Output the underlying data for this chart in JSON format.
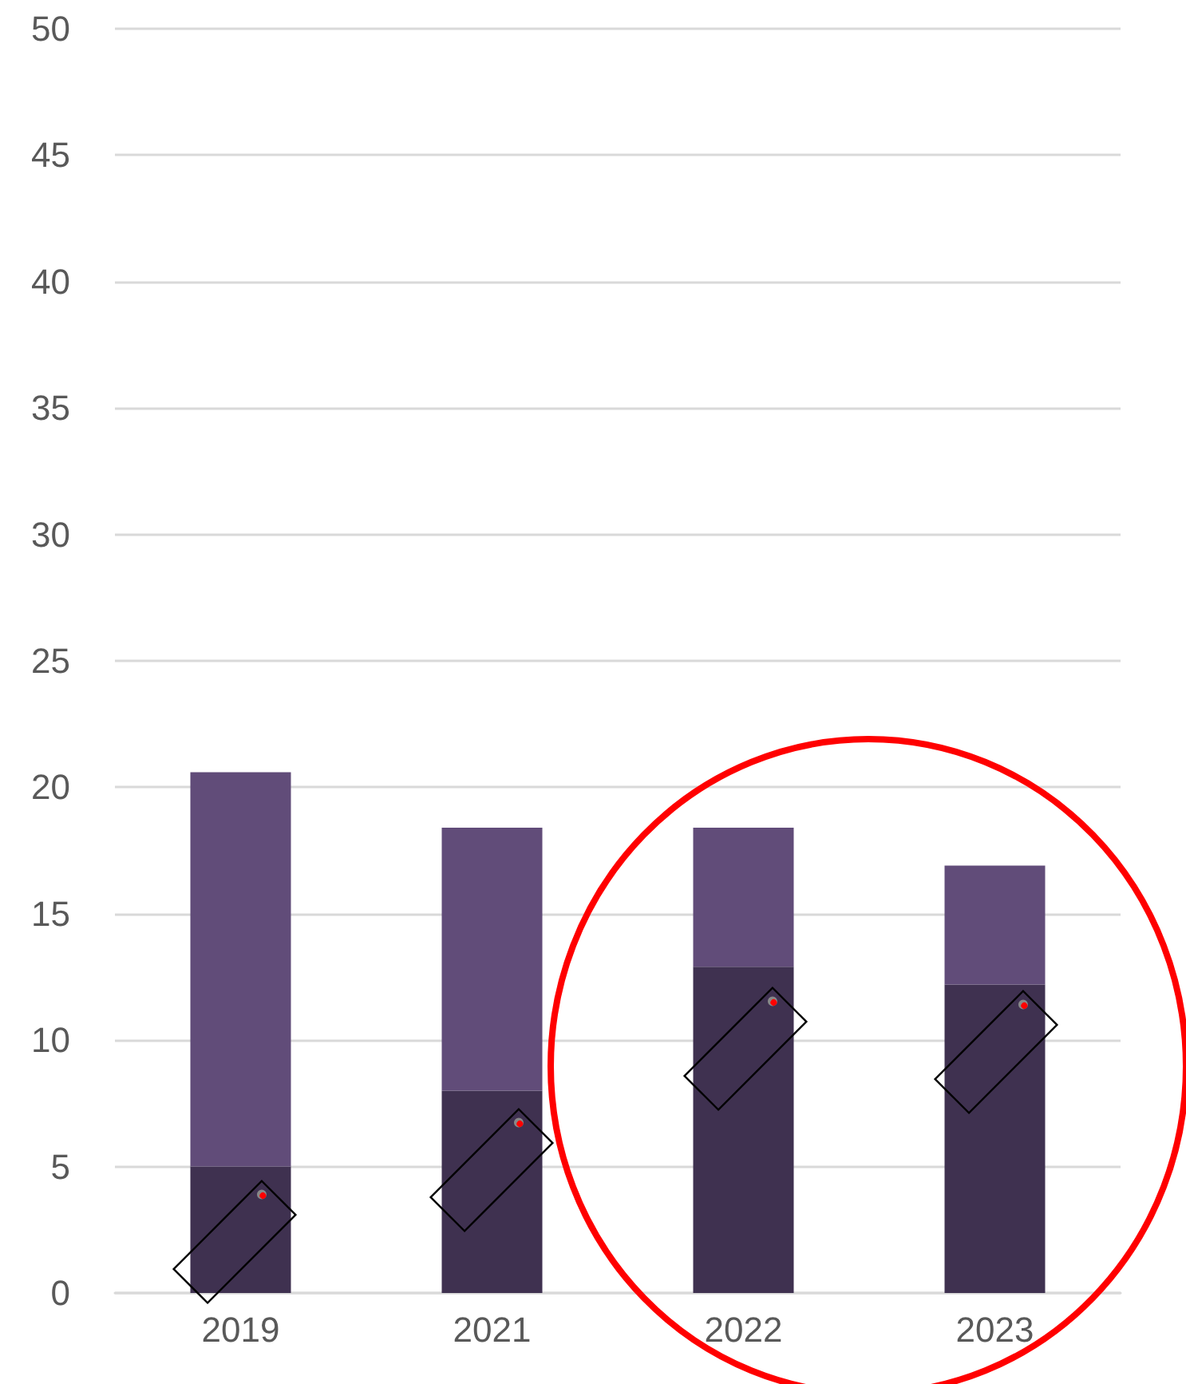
{
  "chart_data": {
    "type": "bar",
    "stacked": true,
    "categories": [
      "2019",
      "2021",
      "2022",
      "2023"
    ],
    "series": [
      {
        "color": "#3f3150",
        "values": [
          5,
          8,
          12.9,
          12.2
        ]
      },
      {
        "color": "#614c79",
        "values": [
          15.6,
          10.4,
          5.5,
          4.7
        ]
      }
    ],
    "ylim": [
      0,
      50
    ],
    "yticks": [
      0,
      5,
      10,
      15,
      20,
      25,
      30,
      35,
      40,
      45,
      50
    ],
    "grid": "y"
  }
}
